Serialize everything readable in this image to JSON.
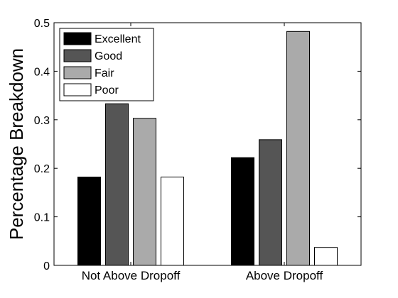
{
  "chart_data": {
    "type": "bar",
    "title": "",
    "xlabel": "",
    "ylabel": "Percentage Breakdown",
    "ylim": [
      0,
      0.5
    ],
    "yticks": [
      "0",
      "0.1",
      "0.2",
      "0.3",
      "0.4",
      "0.5"
    ],
    "ytick_values": [
      0,
      0.1,
      0.2,
      0.3,
      0.4,
      0.5
    ],
    "categories": [
      "Not Above Dropoff",
      "Above Dropoff"
    ],
    "series": [
      {
        "name": "Excellent",
        "color": "#000000",
        "values": [
          0.182,
          0.222
        ]
      },
      {
        "name": "Good",
        "color": "#555555",
        "values": [
          0.333,
          0.259
        ]
      },
      {
        "name": "Fair",
        "color": "#aaaaaa",
        "values": [
          0.303,
          0.482
        ]
      },
      {
        "name": "Poor",
        "color": "#ffffff",
        "values": [
          0.182,
          0.037
        ]
      }
    ],
    "legend_position": "top-left",
    "grid": false
  }
}
